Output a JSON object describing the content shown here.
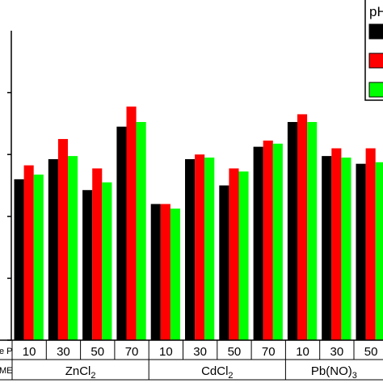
{
  "chart_data": {
    "type": "bar",
    "ylim": [
      0,
      100
    ],
    "yticks": [
      {
        "label": "",
        "value": 0
      },
      {
        "label": "",
        "value": 20
      },
      {
        "label": "",
        "value": 40
      },
      {
        "label": "",
        "value": 60
      },
      {
        "label": "",
        "value": 80
      }
    ],
    "x_row_labels": [
      "e P",
      "ME"
    ],
    "levels": [
      "10",
      "30",
      "50",
      "70",
      "10",
      "30",
      "50",
      "70",
      "10",
      "30",
      "50"
    ],
    "groups": [
      {
        "name": "ZnCl",
        "sub": "2",
        "suffix": ""
      },
      {
        "name": "CdCl",
        "sub": "2",
        "suffix": ""
      },
      {
        "name": "Pb(NO)",
        "sub": "3",
        "suffix": ""
      }
    ],
    "group_levels": [
      4,
      4,
      3
    ],
    "legend": {
      "title": "pH",
      "position": "top-right"
    },
    "series": [
      {
        "color": "#000000",
        "values": [
          52,
          58.5,
          48.5,
          69,
          44,
          58.5,
          50,
          62.5,
          70.5,
          59.5,
          57
        ]
      },
      {
        "color": "#ff0000",
        "values": [
          56.5,
          65,
          55.5,
          75.5,
          44,
          60,
          55.5,
          64.5,
          73,
          62,
          62
        ]
      },
      {
        "color": "#00ff00",
        "values": [
          53.5,
          59.5,
          51,
          70.5,
          42.5,
          59,
          54.5,
          63.5,
          70.5,
          59,
          57.5
        ]
      }
    ]
  }
}
